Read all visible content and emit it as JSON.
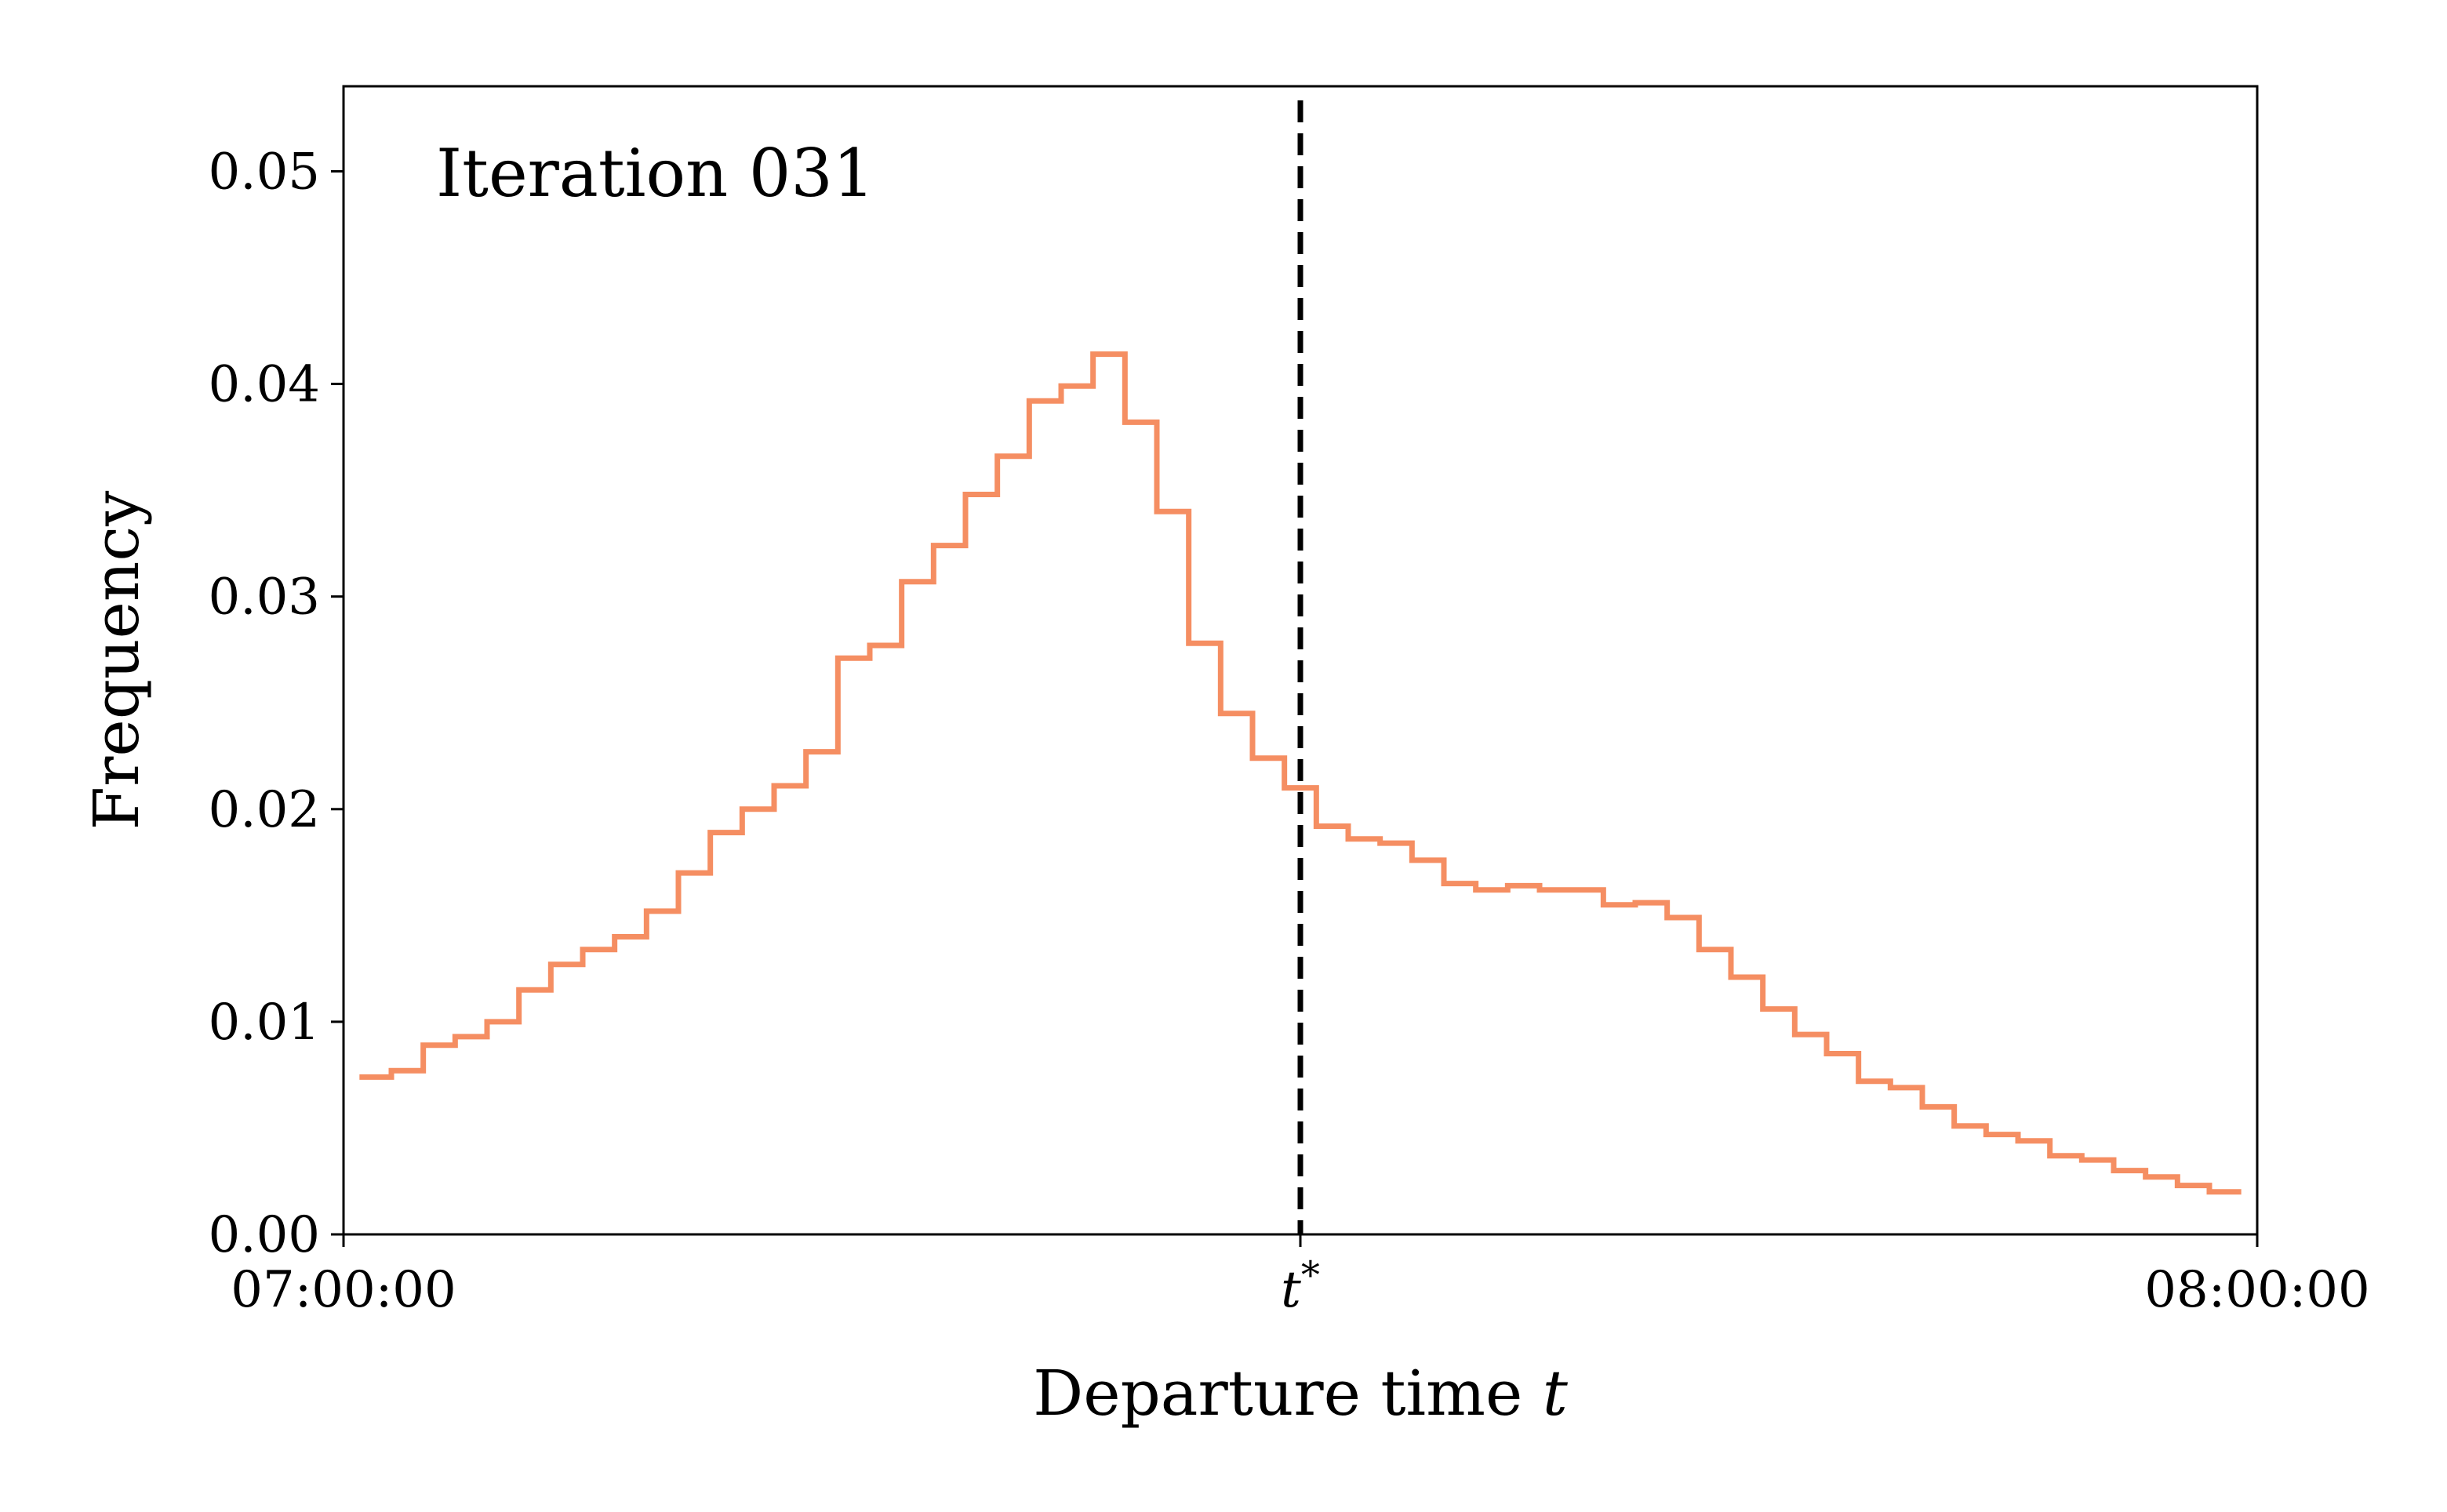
{
  "chart_data": {
    "type": "line",
    "step": "post",
    "annotation": "Iteration 031",
    "xlabel": "Departure time ",
    "xlabel_var": "t",
    "ylabel": "Frequency",
    "xlim": [
      0,
      60
    ],
    "ylim": [
      0,
      0.054
    ],
    "x_ticks": [
      {
        "value": 0,
        "label": "07:00:00"
      },
      {
        "value": 30,
        "label": "t*"
      },
      {
        "value": 60,
        "label": "08:00:00"
      }
    ],
    "y_ticks": [
      0.0,
      0.01,
      0.02,
      0.03,
      0.04,
      0.05
    ],
    "y_tick_labels": [
      "0.00",
      "0.01",
      "0.02",
      "0.03",
      "0.04",
      "0.05"
    ],
    "reference_line": {
      "x": 30,
      "label": "t*",
      "style": "dashed",
      "color": "#000000"
    },
    "grid": false,
    "series": [
      {
        "color": "#f58e62",
        "bin_width": 1,
        "x_start": 0.5,
        "values": [
          0.0074,
          0.0077,
          0.0089,
          0.0093,
          0.01,
          0.0115,
          0.0127,
          0.0134,
          0.014,
          0.0152,
          0.017,
          0.0189,
          0.02,
          0.0211,
          0.0227,
          0.0271,
          0.0277,
          0.0307,
          0.0324,
          0.0348,
          0.0366,
          0.0392,
          0.0399,
          0.0414,
          0.0382,
          0.034,
          0.0278,
          0.0245,
          0.0224,
          0.021,
          0.0192,
          0.0186,
          0.0184,
          0.0176,
          0.0165,
          0.0162,
          0.0164,
          0.0162,
          0.0162,
          0.0155,
          0.0156,
          0.0149,
          0.0134,
          0.0121,
          0.0106,
          0.0094,
          0.0085,
          0.0072,
          0.0069,
          0.006,
          0.0051,
          0.0047,
          0.0044,
          0.0037,
          0.0035,
          0.003,
          0.0027,
          0.0023,
          0.002
        ]
      }
    ]
  }
}
